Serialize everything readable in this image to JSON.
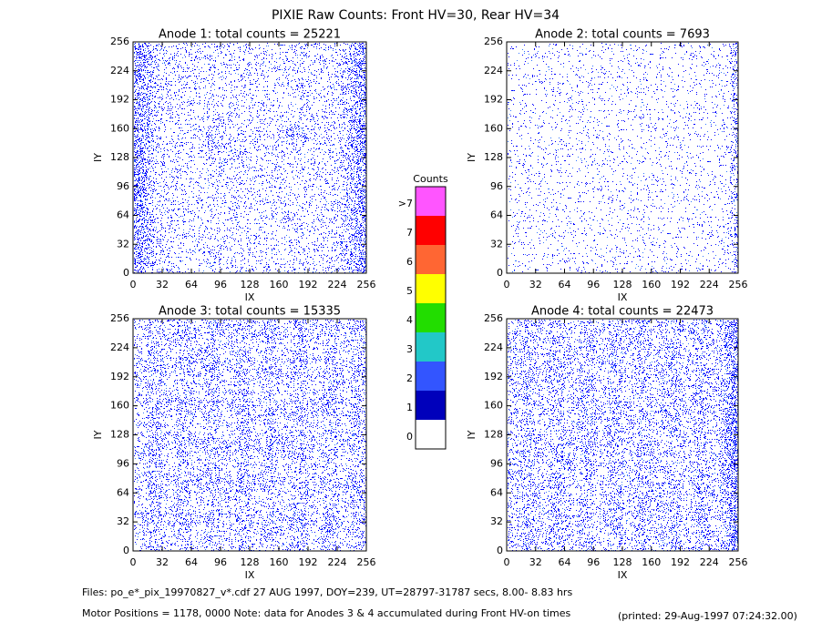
{
  "title": "PIXIE Raw Counts:  Front HV=30, Rear HV=34",
  "chart_data": [
    {
      "type": "image",
      "title": "Anode 1: total counts = 25221",
      "x_label": "IX",
      "y_label": "IY",
      "color": "#0000ff",
      "xlim": [
        0,
        256
      ],
      "ylim": [
        0,
        256
      ],
      "xticks": [
        0,
        32,
        64,
        96,
        128,
        160,
        192,
        224,
        256
      ],
      "yticks": [
        0,
        32,
        64,
        96,
        128,
        160,
        192,
        224,
        256
      ]
    },
    {
      "type": "image",
      "title": "Anode 2: total counts = 7693",
      "x_label": "IX",
      "y_label": "IY",
      "color": "#0000ff",
      "xlim": [
        0,
        256
      ],
      "ylim": [
        0,
        256
      ],
      "xticks": [
        0,
        32,
        64,
        96,
        128,
        160,
        192,
        224,
        256
      ],
      "yticks": [
        0,
        32,
        64,
        96,
        128,
        160,
        192,
        224,
        256
      ]
    },
    {
      "type": "image",
      "title": "Anode 3: total counts = 15335",
      "x_label": "IX",
      "y_label": "IY",
      "color": "#0000ff",
      "xlim": [
        0,
        256
      ],
      "ylim": [
        0,
        256
      ],
      "xticks": [
        0,
        32,
        64,
        96,
        128,
        160,
        192,
        224,
        256
      ],
      "yticks": [
        0,
        32,
        64,
        96,
        128,
        160,
        192,
        224,
        256
      ]
    },
    {
      "type": "image",
      "title": "Anode 4: total counts = 22473",
      "x_label": "IX",
      "y_label": "IY",
      "color": "#0000ff",
      "xlim": [
        0,
        256
      ],
      "ylim": [
        0,
        256
      ],
      "xticks": [
        0,
        32,
        64,
        96,
        128,
        160,
        192,
        224,
        256
      ],
      "yticks": [
        0,
        32,
        64,
        96,
        128,
        160,
        192,
        224,
        256
      ]
    }
  ],
  "colorbar": {
    "title": "Counts",
    "levels": [
      {
        "label": "0",
        "color": "#ffffff"
      },
      {
        "label": "1",
        "color": "#0000bb"
      },
      {
        "label": "2",
        "color": "#3355ff"
      },
      {
        "label": "3",
        "color": "#22c8c8"
      },
      {
        "label": "4",
        "color": "#22dd00"
      },
      {
        "label": "5",
        "color": "#ffff00"
      },
      {
        "label": "6",
        "color": "#ff6633"
      },
      {
        "label": "7",
        "color": "#ff0000"
      },
      {
        "label": ">7",
        "color": "#ff55ff"
      }
    ]
  },
  "footer": {
    "files": "Files: po_e*_pix_19970827_v*.cdf    27 AUG 1997, DOY=239, UT=28797-31787 secs,  8.00- 8.83 hrs",
    "motor": "Motor Positions = 1178, 0000   Note: data for Anodes 3 & 4 accumulated during Front HV-on times",
    "printed": "(printed: 29-Aug-1997 07:24:32.00)"
  }
}
